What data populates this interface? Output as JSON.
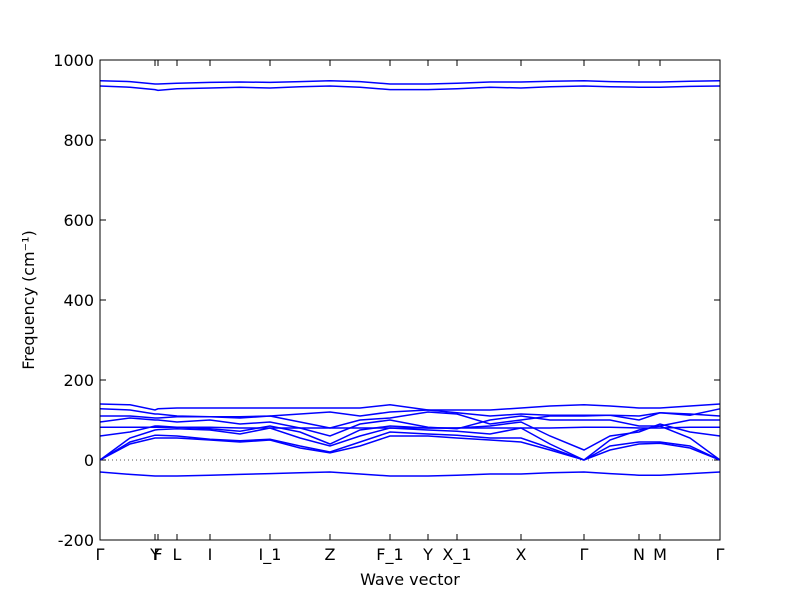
{
  "chart_data": {
    "type": "line",
    "xlabel": "Wave vector",
    "ylabel": "Frequency (cm⁻¹)",
    "x": [
      0,
      0.3,
      0.55,
      0.58,
      0.77,
      1.1,
      1.4,
      1.7,
      2.0,
      2.3,
      2.6,
      2.9,
      3.28,
      3.57,
      3.9,
      4.21,
      4.5,
      4.84,
      5.1,
      5.39,
      5.6,
      5.9,
      6.2
    ],
    "xlim": [
      0,
      6.2
    ],
    "xticks": [
      {
        "value": 0,
        "label": "Γ"
      },
      {
        "value": 0.55,
        "label": "Y"
      },
      {
        "value": 0.58,
        "label": "F"
      },
      {
        "value": 0.77,
        "label": "L"
      },
      {
        "value": 1.1,
        "label": "I"
      },
      {
        "value": 1.7,
        "label": "I_1"
      },
      {
        "value": 2.3,
        "label": "Z"
      },
      {
        "value": 2.9,
        "label": "F_1"
      },
      {
        "value": 3.28,
        "label": "Y"
      },
      {
        "value": 3.57,
        "label": "X_1"
      },
      {
        "value": 4.21,
        "label": "X"
      },
      {
        "value": 4.84,
        "label": "Γ"
      },
      {
        "value": 5.39,
        "label": "N"
      },
      {
        "value": 5.6,
        "label": "M"
      },
      {
        "value": 6.2,
        "label": "Γ"
      }
    ],
    "ylim": [
      -200,
      1000
    ],
    "yticks": [
      -200,
      0,
      200,
      400,
      600,
      800,
      1000
    ],
    "color": "#0000ff",
    "series": [
      {
        "values": [
          948,
          946,
          940,
          940,
          942,
          944,
          945,
          944,
          946,
          948,
          946,
          940,
          940,
          942,
          945,
          945,
          947,
          948,
          946,
          945,
          945,
          947,
          948
        ]
      },
      {
        "values": [
          935,
          932,
          926,
          924,
          928,
          930,
          932,
          930,
          933,
          935,
          932,
          926,
          926,
          928,
          932,
          930,
          933,
          935,
          933,
          932,
          932,
          934,
          935
        ]
      },
      {
        "values": [
          -30,
          -36,
          -40,
          -40,
          -40,
          -38,
          -36,
          -34,
          -32,
          -30,
          -35,
          -40,
          -40,
          -38,
          -35,
          -35,
          -32,
          -30,
          -34,
          -38,
          -38,
          -34,
          -30
        ]
      },
      {
        "values": [
          0,
          40,
          55,
          55,
          55,
          50,
          45,
          50,
          30,
          18,
          35,
          60,
          60,
          55,
          50,
          45,
          25,
          0,
          25,
          40,
          42,
          30,
          0
        ]
      },
      {
        "values": [
          0,
          45,
          62,
          62,
          60,
          52,
          48,
          52,
          35,
          20,
          45,
          70,
          65,
          62,
          55,
          55,
          30,
          0,
          35,
          45,
          45,
          35,
          0
        ]
      },
      {
        "values": [
          0,
          55,
          75,
          76,
          78,
          75,
          65,
          80,
          55,
          35,
          60,
          80,
          75,
          72,
          65,
          80,
          40,
          0,
          50,
          75,
          85,
          55,
          0
        ]
      },
      {
        "values": [
          60,
          70,
          85,
          85,
          82,
          78,
          72,
          85,
          70,
          40,
          75,
          85,
          80,
          80,
          85,
          95,
          60,
          25,
          60,
          70,
          90,
          70,
          60
        ]
      },
      {
        "values": [
          82,
          82,
          82,
          82,
          82,
          82,
          80,
          80,
          80,
          80,
          80,
          80,
          80,
          80,
          80,
          80,
          80,
          82,
          82,
          80,
          80,
          82,
          82
        ]
      },
      {
        "values": [
          95,
          105,
          100,
          100,
          95,
          100,
          90,
          95,
          80,
          60,
          90,
          100,
          82,
          78,
          100,
          110,
          100,
          100,
          100,
          85,
          85,
          100,
          100
        ]
      },
      {
        "values": [
          110,
          110,
          105,
          105,
          108,
          108,
          105,
          110,
          95,
          80,
          100,
          105,
          120,
          115,
          90,
          100,
          110,
          110,
          112,
          100,
          118,
          115,
          110
        ]
      },
      {
        "values": [
          128,
          125,
          115,
          115,
          110,
          108,
          108,
          110,
          115,
          120,
          110,
          120,
          125,
          118,
          110,
          115,
          112,
          112,
          112,
          110,
          118,
          112,
          128
        ]
      },
      {
        "values": [
          140,
          138,
          125,
          128,
          130,
          130,
          130,
          130,
          130,
          130,
          130,
          138,
          125,
          125,
          125,
          130,
          135,
          138,
          135,
          130,
          130,
          135,
          140
        ]
      }
    ]
  }
}
